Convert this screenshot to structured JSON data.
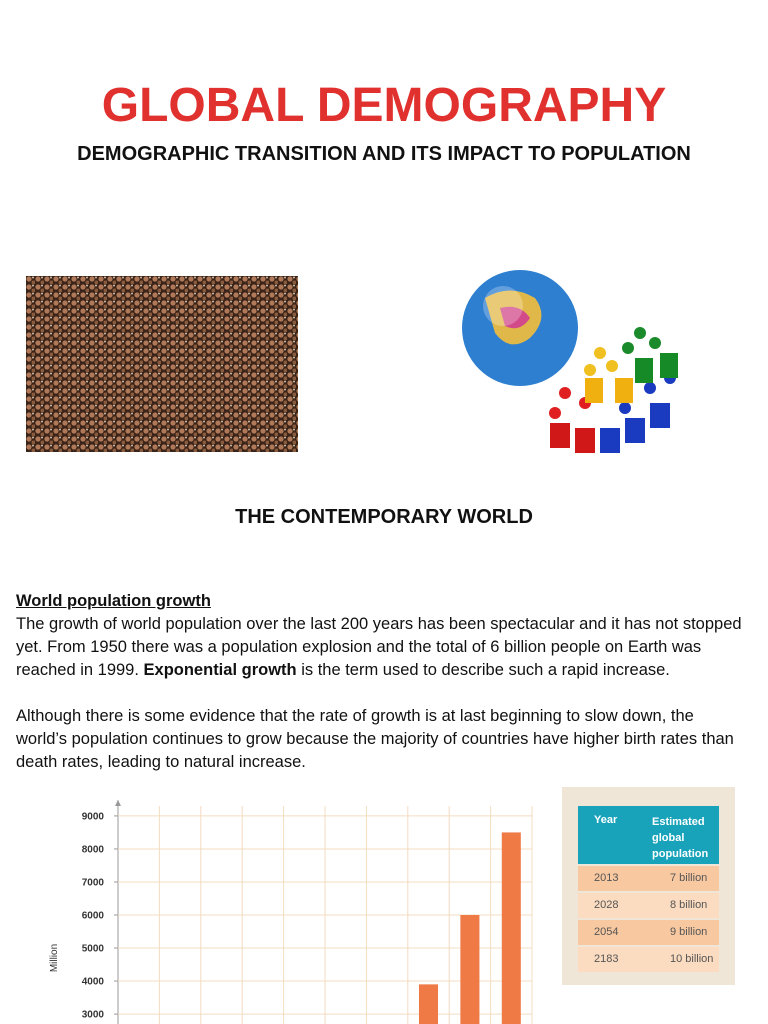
{
  "header": {
    "title": "GLOBAL DEMOGRAPHY",
    "subtitle": "DEMOGRAPHIC TRANSITION AND ITS IMPACT TO POPULATION"
  },
  "section_title": "THE CONTEMPORARY WORLD",
  "body": {
    "heading": "World population growth",
    "paragraph_1": {
      "before": "The growth of world population over the last 200 years has been spectacular and it has not stopped yet. From 1950 there was a population explosion and the total of 6 billion people on Earth was reached in 1999. ",
      "bold": "Exponential growth",
      "after": " is the term used to describe such a rapid increase."
    },
    "paragraph_2": "Although there is some evidence that the rate of growth is at last beginning to slow down, the world’s population continues to grow because the majority of countries have higher birth rates than death rates, leading to natural increase."
  },
  "chart_data": {
    "type": "bar",
    "y_label": "Million",
    "categories": [
      null,
      null,
      null,
      null,
      null,
      null,
      null,
      null,
      null,
      null
    ],
    "values": [
      null,
      null,
      null,
      null,
      null,
      null,
      null,
      3900,
      6000,
      8500
    ],
    "color": "#f07a45",
    "ylim": [
      2700,
      9300
    ],
    "yticks": [
      3000,
      4000,
      5000,
      6000,
      7000,
      8000,
      9000
    ],
    "grid": true
  },
  "table": {
    "header": [
      "Year",
      "Estimated global population"
    ],
    "rows": [
      [
        "2013",
        "7 billion"
      ],
      [
        "2028",
        "8 billion"
      ],
      [
        "2054",
        "9 billion"
      ],
      [
        "2183",
        "10 billion"
      ]
    ]
  }
}
